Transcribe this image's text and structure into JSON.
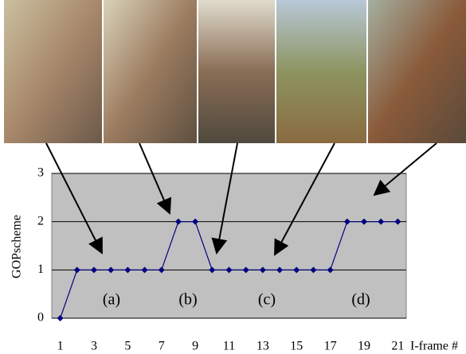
{
  "chart_data": {
    "type": "line",
    "y_label": "GOPscheme",
    "x_label": "I-frame #",
    "x": [
      1,
      2,
      3,
      4,
      5,
      6,
      7,
      8,
      9,
      10,
      11,
      12,
      13,
      14,
      15,
      16,
      17,
      18,
      19,
      20,
      21
    ],
    "values": [
      0,
      1,
      1,
      1,
      1,
      1,
      1,
      2,
      2,
      1,
      1,
      1,
      1,
      1,
      1,
      1,
      1,
      2,
      2,
      2,
      2
    ],
    "color": "#000080",
    "xlim": [
      0.5,
      21.5
    ],
    "xticks": [
      1,
      3,
      5,
      7,
      9,
      11,
      13,
      15,
      17,
      19,
      21
    ],
    "ylim": [
      0,
      3
    ],
    "yticks": [
      0,
      1,
      2,
      3
    ],
    "grid": true,
    "annotations": [
      "(a)",
      "(b)",
      "(c)",
      "(d)"
    ]
  }
}
